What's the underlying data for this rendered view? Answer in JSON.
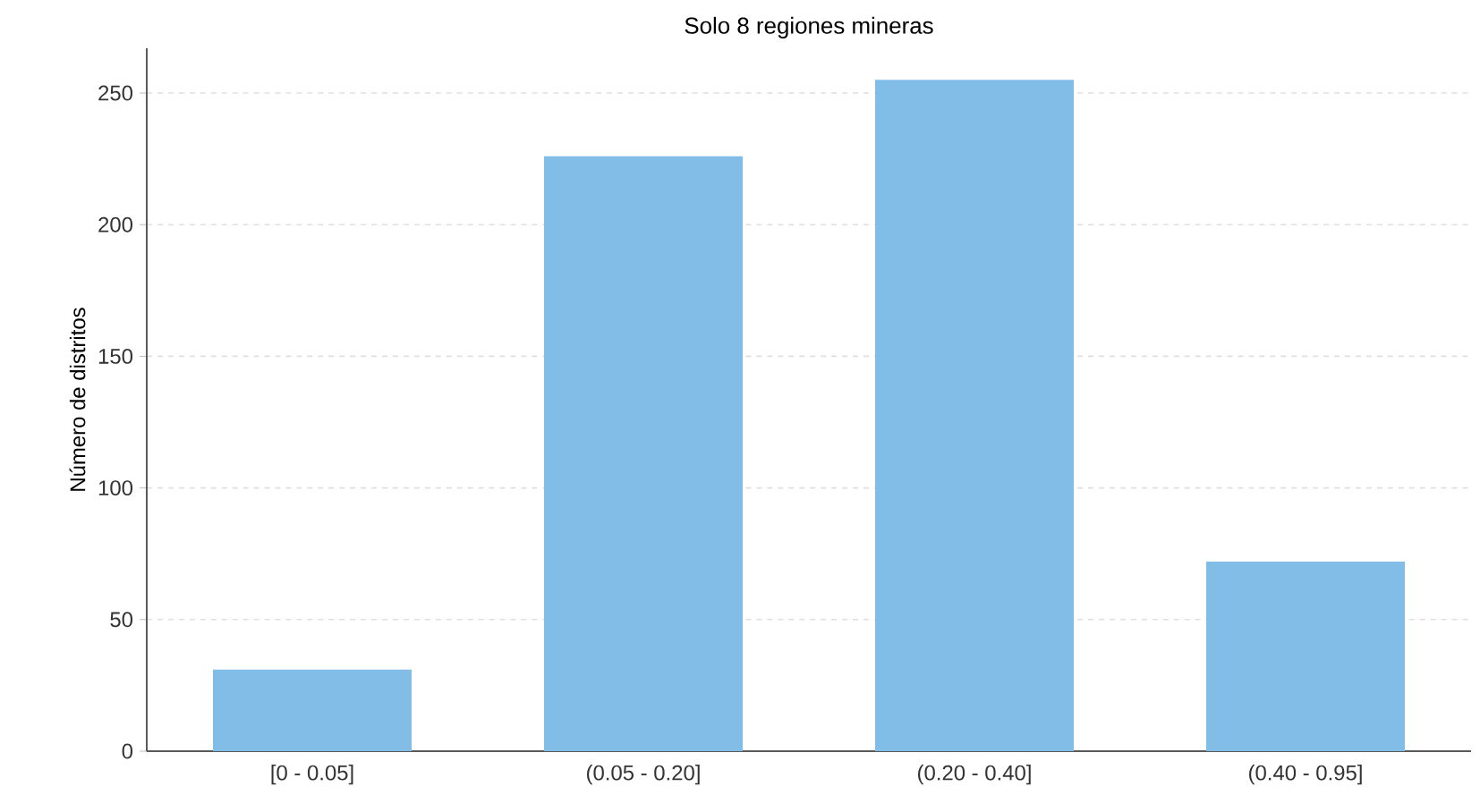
{
  "chart_data": {
    "type": "bar",
    "title": "Solo 8 regiones mineras",
    "ylabel": "Número de distritos",
    "categories": [
      "[0 - 0.05]",
      "(0.05 - 0.20]",
      "(0.20 - 0.40]",
      "(0.40 - 0.95]"
    ],
    "values": [
      31,
      226,
      255,
      72
    ],
    "color": "#82bde8",
    "ylim": [
      0,
      267
    ],
    "yticks": [
      0,
      50,
      100,
      150,
      200,
      250
    ],
    "grid": "y"
  }
}
